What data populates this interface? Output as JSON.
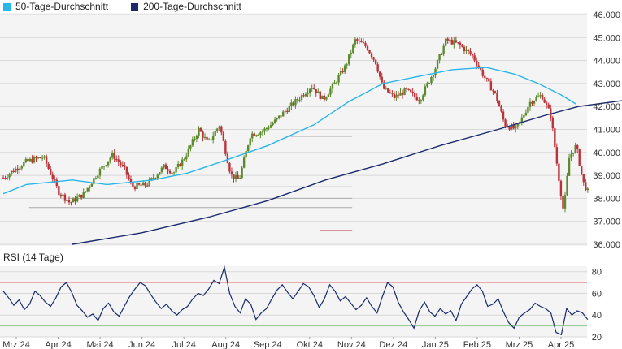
{
  "legend": {
    "ma50_label": "50-Tage-Durchschnitt",
    "ma200_label": "200-Tage-Durchschnitt"
  },
  "rsi_label": "RSI (14 Tage)",
  "colors": {
    "ma50": "#29b6e8",
    "ma200": "#1a2a6c",
    "up": "#5a8a2a",
    "down": "#b8333a",
    "rsi": "#1a2a6c",
    "rsi_overbought_line": "#e08080",
    "rsi_oversold_line": "#8ec98e",
    "grid": "#d8d8d8",
    "panel_bg": "#f4f4f4"
  },
  "chart_data": [
    {
      "type": "line",
      "title": "",
      "y_ticks": [
        "36.000",
        "37.000",
        "38.000",
        "39.000",
        "40.000",
        "41.000",
        "42.000",
        "43.000",
        "44.000",
        "45.000",
        "46.000"
      ],
      "ylim": [
        36000,
        46000
      ],
      "x_ticks": [
        "Mrz 24",
        "Apr 24",
        "Mai 24",
        "Jun 24",
        "Jul 24",
        "Aug 24",
        "Sep 24",
        "Okt 24",
        "Nov 24",
        "Dez 24",
        "Jan 25",
        "Feb 25",
        "Mrz 25",
        "Apr 25"
      ],
      "candle_days": 285,
      "price_anchors": [
        [
          0,
          38900
        ],
        [
          20,
          39600
        ],
        [
          35,
          39800
        ],
        [
          48,
          38300
        ],
        [
          58,
          37800
        ],
        [
          70,
          38200
        ],
        [
          82,
          39100
        ],
        [
          95,
          39900
        ],
        [
          105,
          39300
        ],
        [
          112,
          38500
        ],
        [
          125,
          38600
        ],
        [
          140,
          39400
        ],
        [
          148,
          39100
        ],
        [
          158,
          39800
        ],
        [
          170,
          41000
        ],
        [
          178,
          40400
        ],
        [
          188,
          41200
        ],
        [
          198,
          39000
        ],
        [
          205,
          38800
        ],
        [
          215,
          40800
        ],
        [
          225,
          40900
        ],
        [
          235,
          41300
        ],
        [
          245,
          41800
        ],
        [
          258,
          42400
        ],
        [
          268,
          42900
        ],
        [
          278,
          42300
        ],
        [
          288,
          43000
        ],
        [
          298,
          43800
        ],
        [
          306,
          44900
        ],
        [
          316,
          44600
        ],
        [
          324,
          43900
        ],
        [
          330,
          42800
        ],
        [
          340,
          42400
        ],
        [
          350,
          42700
        ],
        [
          362,
          42300
        ],
        [
          375,
          43600
        ],
        [
          385,
          44900
        ],
        [
          396,
          44700
        ],
        [
          408,
          44200
        ],
        [
          418,
          43300
        ],
        [
          428,
          42500
        ],
        [
          436,
          41200
        ],
        [
          446,
          41000
        ],
        [
          458,
          42200
        ],
        [
          468,
          42500
        ],
        [
          476,
          41600
        ],
        [
          482,
          39200
        ],
        [
          487,
          37400
        ],
        [
          492,
          39800
        ],
        [
          498,
          40300
        ],
        [
          504,
          38700
        ],
        [
          508,
          38300
        ]
      ],
      "series": [
        {
          "name": "50-Tage-Durchschnitt",
          "points": [
            [
              0,
              38200
            ],
            [
              20,
              38600
            ],
            [
              60,
              38800
            ],
            [
              90,
              38600
            ],
            [
              130,
              38800
            ],
            [
              160,
              39100
            ],
            [
              190,
              39600
            ],
            [
              230,
              40300
            ],
            [
              270,
              41200
            ],
            [
              300,
              42200
            ],
            [
              330,
              43000
            ],
            [
              360,
              43300
            ],
            [
              390,
              43600
            ],
            [
              420,
              43700
            ],
            [
              445,
              43400
            ],
            [
              465,
              43000
            ],
            [
              485,
              42500
            ],
            [
              498,
              42100
            ]
          ]
        },
        {
          "name": "200-Tage-Durchschnitt",
          "points": [
            [
              60,
              36000
            ],
            [
              120,
              36500
            ],
            [
              180,
              37200
            ],
            [
              230,
              37900
            ],
            [
              280,
              38800
            ],
            [
              330,
              39500
            ],
            [
              380,
              40300
            ],
            [
              430,
              41000
            ],
            [
              470,
              41600
            ],
            [
              500,
              42000
            ],
            [
              530,
              42200
            ],
            [
              545,
              42300
            ],
            [
              560,
              42300
            ]
          ]
        }
      ],
      "support_lines": [
        {
          "value": 37600,
          "from": 40,
          "to": 502,
          "color": "#aaaaaa"
        },
        {
          "value": 38000,
          "from": 100,
          "to": 502,
          "color": "#aaaaaa"
        },
        {
          "value": 38500,
          "from": 175,
          "to": 502,
          "color": "#aaaaaa"
        },
        {
          "value": 40700,
          "from": 438,
          "to": 502,
          "color": "#aaaaaa"
        },
        {
          "value": 36600,
          "from": 490,
          "to": 502,
          "color": "#b8333a"
        }
      ]
    },
    {
      "type": "line",
      "title": "RSI (14 Tage)",
      "y_ticks": [
        "20",
        "40",
        "60",
        "80"
      ],
      "ylim": [
        20,
        85
      ],
      "overbought": 70,
      "oversold": 30,
      "values": [
        62,
        56,
        49,
        54,
        45,
        50,
        62,
        58,
        52,
        48,
        56,
        66,
        70,
        61,
        49,
        44,
        38,
        41,
        35,
        46,
        51,
        43,
        39,
        48,
        57,
        64,
        70,
        67,
        59,
        52,
        46,
        50,
        44,
        40,
        45,
        48,
        55,
        60,
        58,
        64,
        72,
        69,
        84,
        60,
        48,
        42,
        55,
        50,
        36,
        42,
        46,
        55,
        63,
        68,
        61,
        55,
        62,
        69,
        66,
        58,
        47,
        55,
        68,
        62,
        53,
        57,
        51,
        45,
        49,
        56,
        48,
        42,
        57,
        70,
        66,
        52,
        43,
        36,
        28,
        44,
        52,
        43,
        39,
        46,
        41,
        44,
        35,
        50,
        57,
        64,
        68,
        62,
        48,
        50,
        55,
        43,
        33,
        28,
        38,
        42,
        45,
        51,
        48,
        46,
        42,
        24,
        22,
        46,
        40,
        44,
        42,
        36
      ]
    }
  ]
}
